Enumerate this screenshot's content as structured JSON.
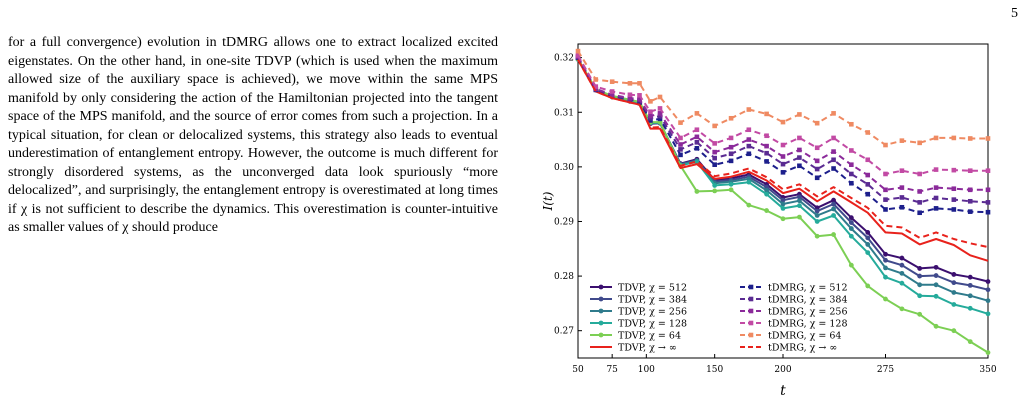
{
  "page": {
    "number": "5",
    "paragraph": "for a full convergence) evolution in tDMRG allows one to extract localized excited eigenstates. On the other hand, in one-site TDVP (which is used when the maximum allowed size of the auxiliary space is achieved), we move within the same MPS manifold by only considering the action of the Hamiltonian projected into the tangent space of the MPS manifold, and the source of error comes from such a projection. In a typical situation, for clean or delocalized systems, this strategy also leads to eventual underestimation of entanglement entropy. However, the outcome is much different for strongly disordered systems, as the unconverged data look spuriously “more delocalized”, and surprisingly, the entanglement entropy is overestimated at long times if χ is not sufficient to describe the dynamics. This overestimation is counter-intuitive as smaller values of χ should produce"
  },
  "chart_data": {
    "type": "line",
    "xlabel": "t",
    "ylabel": "I(t)",
    "xlim": [
      50,
      350
    ],
    "ylim": [
      0.265,
      0.3225
    ],
    "x_ticks": [
      50,
      75,
      100,
      150,
      200,
      275,
      350
    ],
    "y_ticks": [
      0.27,
      0.28,
      0.29,
      0.3,
      0.31,
      0.32
    ],
    "x_tick_labels": [
      "50",
      "75",
      "100",
      "150",
      "200",
      "275",
      "350"
    ],
    "y_tick_labels": [
      "0.27",
      "0.28",
      "0.29",
      "0.30",
      "0.31",
      "0.32"
    ],
    "legend_placement": "lower-left",
    "x": [
      50,
      63,
      75,
      88,
      95,
      103,
      110,
      125,
      137,
      150,
      162,
      175,
      188,
      200,
      212,
      225,
      237,
      250,
      262,
      275,
      287,
      300,
      312,
      325,
      337,
      350
    ],
    "series": [
      {
        "name": "TDVP, χ = 512",
        "color": "#3b0f6f",
        "style": "solid",
        "marker": "circle",
        "values": [
          0.3197,
          0.3141,
          0.3128,
          0.312,
          0.3116,
          0.3079,
          0.308,
          0.3006,
          0.3014,
          0.2976,
          0.2979,
          0.2986,
          0.2968,
          0.2944,
          0.295,
          0.2925,
          0.2939,
          0.2907,
          0.288,
          0.284,
          0.2833,
          0.2814,
          0.2816,
          0.2803,
          0.2798,
          0.279
        ]
      },
      {
        "name": "TDVP, χ = 384",
        "color": "#404a8c",
        "style": "solid",
        "marker": "circle",
        "values": [
          0.3197,
          0.3141,
          0.3128,
          0.312,
          0.3117,
          0.308,
          0.308,
          0.3005,
          0.3012,
          0.2973,
          0.2976,
          0.2982,
          0.2963,
          0.2939,
          0.2945,
          0.2919,
          0.2932,
          0.2898,
          0.287,
          0.2829,
          0.282,
          0.28,
          0.2801,
          0.2788,
          0.2783,
          0.2775
        ]
      },
      {
        "name": "TDVP, χ = 256",
        "color": "#2f7b8c",
        "style": "solid",
        "marker": "circle",
        "values": [
          0.3197,
          0.3141,
          0.3128,
          0.3121,
          0.3117,
          0.308,
          0.3081,
          0.3004,
          0.3011,
          0.297,
          0.2973,
          0.2978,
          0.2957,
          0.2932,
          0.2938,
          0.2911,
          0.2923,
          0.2887,
          0.2858,
          0.2815,
          0.2805,
          0.2784,
          0.2784,
          0.277,
          0.2764,
          0.2755
        ]
      },
      {
        "name": "TDVP, χ = 128",
        "color": "#25ab9b",
        "style": "solid",
        "marker": "circle",
        "values": [
          0.3197,
          0.3141,
          0.3129,
          0.3121,
          0.3118,
          0.3081,
          0.3081,
          0.3003,
          0.3009,
          0.2966,
          0.2968,
          0.2972,
          0.295,
          0.2924,
          0.2929,
          0.29,
          0.2911,
          0.2873,
          0.2843,
          0.2798,
          0.2787,
          0.2764,
          0.2763,
          0.2748,
          0.2741,
          0.2731
        ]
      },
      {
        "name": "TDVP, χ = 64",
        "color": "#7ccf54",
        "style": "solid",
        "marker": "circle",
        "values": [
          0.3198,
          0.3142,
          0.313,
          0.3123,
          0.3119,
          0.3082,
          0.3082,
          0.3002,
          0.2955,
          0.2956,
          0.2958,
          0.293,
          0.292,
          0.2905,
          0.2908,
          0.2873,
          0.2876,
          0.282,
          0.2782,
          0.2758,
          0.274,
          0.273,
          0.2708,
          0.27,
          0.268,
          0.266
        ]
      },
      {
        "name": "TDVP, χ → ∞",
        "color": "#e8221c",
        "style": "solid",
        "marker": "none",
        "values": [
          0.3196,
          0.3138,
          0.3126,
          0.3118,
          0.3114,
          0.307,
          0.307,
          0.2998,
          0.3005,
          0.2978,
          0.2982,
          0.2991,
          0.2975,
          0.2952,
          0.296,
          0.2937,
          0.2955,
          0.2935,
          0.2916,
          0.288,
          0.2878,
          0.2858,
          0.2868,
          0.2857,
          0.2838,
          0.2828
        ]
      },
      {
        "name": "tDMRG, χ = 512",
        "color": "#1d1f8c",
        "style": "dashed",
        "marker": "square",
        "values": [
          0.32,
          0.3141,
          0.313,
          0.3123,
          0.312,
          0.3085,
          0.3088,
          0.3022,
          0.3034,
          0.3004,
          0.3011,
          0.3024,
          0.301,
          0.299,
          0.3002,
          0.298,
          0.2997,
          0.297,
          0.295,
          0.2922,
          0.2926,
          0.2916,
          0.2924,
          0.2922,
          0.2918,
          0.2917
        ]
      },
      {
        "name": "tDMRG, χ = 384",
        "color": "#5a2b92",
        "style": "dashed",
        "marker": "square",
        "values": [
          0.3201,
          0.3142,
          0.3131,
          0.3124,
          0.3122,
          0.3089,
          0.3093,
          0.3032,
          0.3045,
          0.3016,
          0.3024,
          0.3038,
          0.3025,
          0.3005,
          0.3017,
          0.2996,
          0.3013,
          0.2987,
          0.2968,
          0.294,
          0.2944,
          0.2935,
          0.2943,
          0.294,
          0.2937,
          0.2935
        ]
      },
      {
        "name": "tDMRG, χ = 256",
        "color": "#8b2a9a",
        "style": "dashed",
        "marker": "square",
        "values": [
          0.3202,
          0.3143,
          0.3132,
          0.3126,
          0.3124,
          0.3093,
          0.3098,
          0.3041,
          0.3055,
          0.3027,
          0.3036,
          0.305,
          0.3038,
          0.3019,
          0.3031,
          0.3011,
          0.3028,
          0.3004,
          0.2985,
          0.2958,
          0.2962,
          0.2955,
          0.2962,
          0.296,
          0.2958,
          0.2958
        ]
      },
      {
        "name": "tDMRG, χ = 128",
        "color": "#c24aa4",
        "style": "dashed",
        "marker": "square",
        "values": [
          0.3204,
          0.3147,
          0.3138,
          0.3132,
          0.3131,
          0.3101,
          0.3107,
          0.3053,
          0.3068,
          0.3043,
          0.3053,
          0.3068,
          0.3057,
          0.304,
          0.3053,
          0.3035,
          0.3053,
          0.303,
          0.3013,
          0.2987,
          0.2993,
          0.2987,
          0.2995,
          0.2994,
          0.2993,
          0.2993
        ]
      },
      {
        "name": "tDMRG, χ = 64",
        "color": "#ef8a62",
        "style": "dashed",
        "marker": "square",
        "values": [
          0.3212,
          0.316,
          0.3156,
          0.3153,
          0.3153,
          0.312,
          0.3128,
          0.3081,
          0.3098,
          0.3075,
          0.3089,
          0.3105,
          0.3097,
          0.3082,
          0.3096,
          0.308,
          0.3098,
          0.3078,
          0.3063,
          0.304,
          0.3048,
          0.3044,
          0.3053,
          0.3053,
          0.3052,
          0.3052
        ]
      },
      {
        "name": "tDMRG, χ → ∞",
        "color": "#e8221c",
        "style": "dashed",
        "marker": "none",
        "values": [
          0.3196,
          0.3138,
          0.3126,
          0.3118,
          0.3114,
          0.3072,
          0.3073,
          0.3002,
          0.301,
          0.2983,
          0.2988,
          0.2997,
          0.2981,
          0.2959,
          0.2968,
          0.2946,
          0.2963,
          0.2943,
          0.2925,
          0.2892,
          0.2889,
          0.287,
          0.288,
          0.2868,
          0.286,
          0.2853
        ]
      }
    ]
  }
}
